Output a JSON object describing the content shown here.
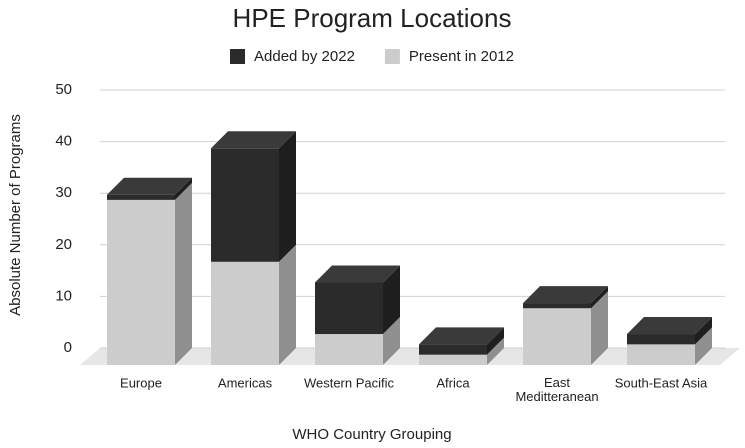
{
  "chart_data": {
    "type": "bar3d-stacked",
    "title": "HPE Program Locations",
    "x_label": "WHO Country Grouping",
    "y_label": "Absolute Number of Programs",
    "categories": [
      "Europe",
      "Americas",
      "Western Pacific",
      "Africa",
      "East Meditteranean",
      "South-East Asia"
    ],
    "series": [
      {
        "name": "Added by 2022",
        "color": "#2b2b2b",
        "values": [
          1,
          22,
          10,
          2,
          1,
          2
        ]
      },
      {
        "name": "Present in 2012",
        "color": "#cccccc",
        "values": [
          32,
          20,
          6,
          2,
          11,
          4
        ]
      }
    ],
    "ylim": [
      0,
      50
    ],
    "yticks": [
      0,
      10,
      20,
      30,
      40,
      50
    ],
    "grid": true
  }
}
